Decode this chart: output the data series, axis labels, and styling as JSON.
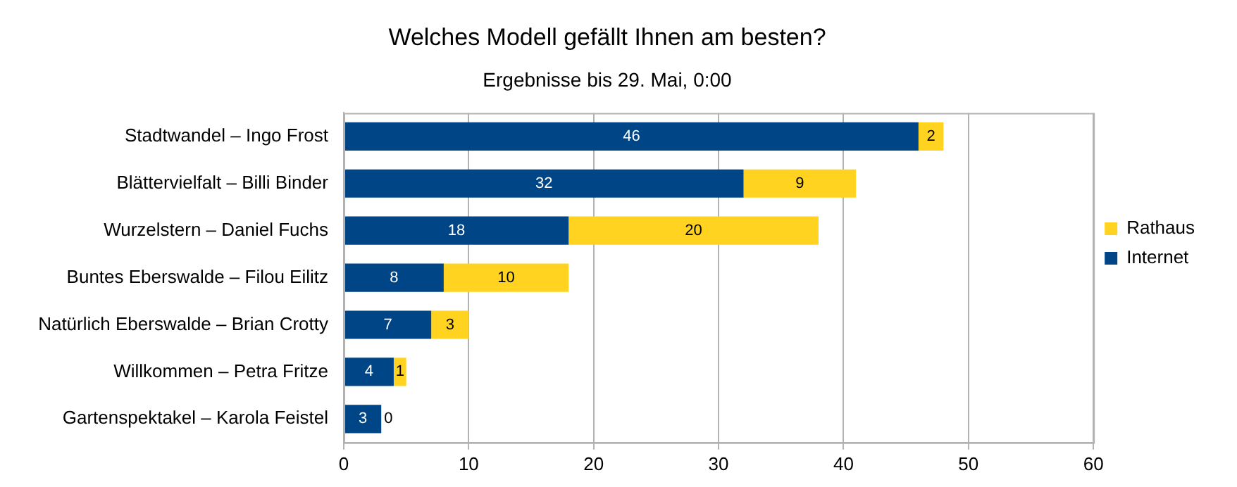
{
  "chart_data": {
    "type": "bar",
    "orientation": "horizontal",
    "stacked": true,
    "title": "Welches Modell gefällt Ihnen am besten?",
    "subtitle": "Ergebnisse bis 29. Mai, 0:00",
    "categories": [
      "Stadtwandel – Ingo Frost",
      "Blättervielfalt – Billi Binder",
      "Wurzelstern – Daniel Fuchs",
      "Buntes Eberswalde – Filou Eilitz",
      "Natürlich Eberswalde – Brian Crotty",
      "Willkommen – Petra Fritze",
      "Gartenspektakel – Karola Feistel"
    ],
    "series": [
      {
        "name": "Internet",
        "color": "#004586",
        "values": [
          46,
          32,
          18,
          8,
          7,
          4,
          3
        ]
      },
      {
        "name": "Rathaus",
        "color": "#ffd320",
        "values": [
          2,
          9,
          20,
          10,
          3,
          1,
          0
        ]
      }
    ],
    "xlim": [
      0,
      60
    ],
    "xticks": [
      0,
      10,
      20,
      30,
      40,
      50,
      60
    ],
    "grid": "x",
    "legend": "right",
    "data_labels": true
  }
}
